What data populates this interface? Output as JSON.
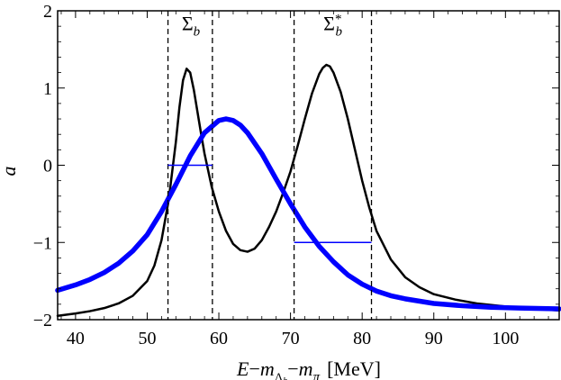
{
  "chart_data": {
    "type": "line",
    "title": "",
    "xlabel": "E−mΛb−mπ [MeV]",
    "xlabel_parts": {
      "e": "E",
      "minus": "−",
      "m": "m",
      "sub_main": "Λ",
      "sub_sub": "b",
      "pi": "π",
      "unit": "[MeV]"
    },
    "ylabel": "a",
    "xlim": [
      37.5,
      107.5
    ],
    "ylim": [
      -2,
      2
    ],
    "x_ticks": [
      40,
      50,
      60,
      70,
      80,
      90,
      100
    ],
    "y_ticks": [
      -2,
      -1,
      0,
      1,
      2
    ],
    "y_tick_labels": [
      "−2",
      "−1",
      "0",
      "1",
      "2"
    ],
    "grid": false,
    "series": [
      {
        "name": "black curve",
        "color": "#000000",
        "x": [
          37.5,
          40,
          42,
          44,
          46,
          48,
          50,
          51,
          52,
          53,
          54,
          54.5,
          55,
          55.5,
          56,
          56.5,
          57,
          57.5,
          58,
          59,
          60,
          61,
          62,
          63,
          64,
          65,
          66,
          67,
          68,
          69,
          70,
          71,
          72,
          73,
          74,
          74.5,
          75,
          75.5,
          76,
          77,
          78,
          79,
          80,
          81,
          82,
          84,
          86,
          88,
          90,
          93,
          96,
          100,
          104,
          107.5
        ],
        "values": [
          -1.95,
          -1.92,
          -1.89,
          -1.85,
          -1.79,
          -1.69,
          -1.5,
          -1.3,
          -0.97,
          -0.45,
          0.3,
          0.75,
          1.1,
          1.25,
          1.2,
          0.98,
          0.7,
          0.42,
          0.15,
          -0.28,
          -0.6,
          -0.85,
          -1.02,
          -1.1,
          -1.12,
          -1.08,
          -0.97,
          -0.8,
          -0.6,
          -0.35,
          -0.08,
          0.25,
          0.6,
          0.93,
          1.18,
          1.26,
          1.3,
          1.28,
          1.2,
          0.95,
          0.6,
          0.2,
          -0.2,
          -0.55,
          -0.85,
          -1.22,
          -1.45,
          -1.58,
          -1.67,
          -1.74,
          -1.79,
          -1.83,
          -1.86,
          -1.88
        ]
      },
      {
        "name": "blue curve",
        "color": "#0000ff",
        "x": [
          37.5,
          40,
          42,
          44,
          46,
          48,
          50,
          52,
          54,
          56,
          58,
          60,
          61,
          62,
          63,
          64,
          66,
          68,
          70,
          72,
          74,
          76,
          78,
          80,
          82,
          84,
          86,
          90,
          94,
          98,
          102,
          107.5
        ],
        "values": [
          -1.62,
          -1.55,
          -1.48,
          -1.39,
          -1.27,
          -1.11,
          -0.9,
          -0.6,
          -0.25,
          0.12,
          0.42,
          0.58,
          0.6,
          0.58,
          0.52,
          0.42,
          0.15,
          -0.18,
          -0.5,
          -0.8,
          -1.05,
          -1.25,
          -1.42,
          -1.54,
          -1.63,
          -1.69,
          -1.73,
          -1.79,
          -1.82,
          -1.84,
          -1.85,
          -1.86
        ]
      }
    ],
    "vertical_lines": [
      52.9,
      59.1,
      70.5,
      81.3
    ],
    "horizontal_segments": [
      {
        "x": [
          52.9,
          59.1
        ],
        "y": 0
      },
      {
        "x": [
          70.5,
          81.3
        ],
        "y": -1
      }
    ],
    "annotations": [
      {
        "text": "Σ",
        "sub": "b",
        "sup": "",
        "x": 56.1,
        "y": 1.75
      },
      {
        "text": "Σ",
        "sub": "b",
        "sup": "*",
        "x": 75.9,
        "y": 1.75
      }
    ]
  }
}
